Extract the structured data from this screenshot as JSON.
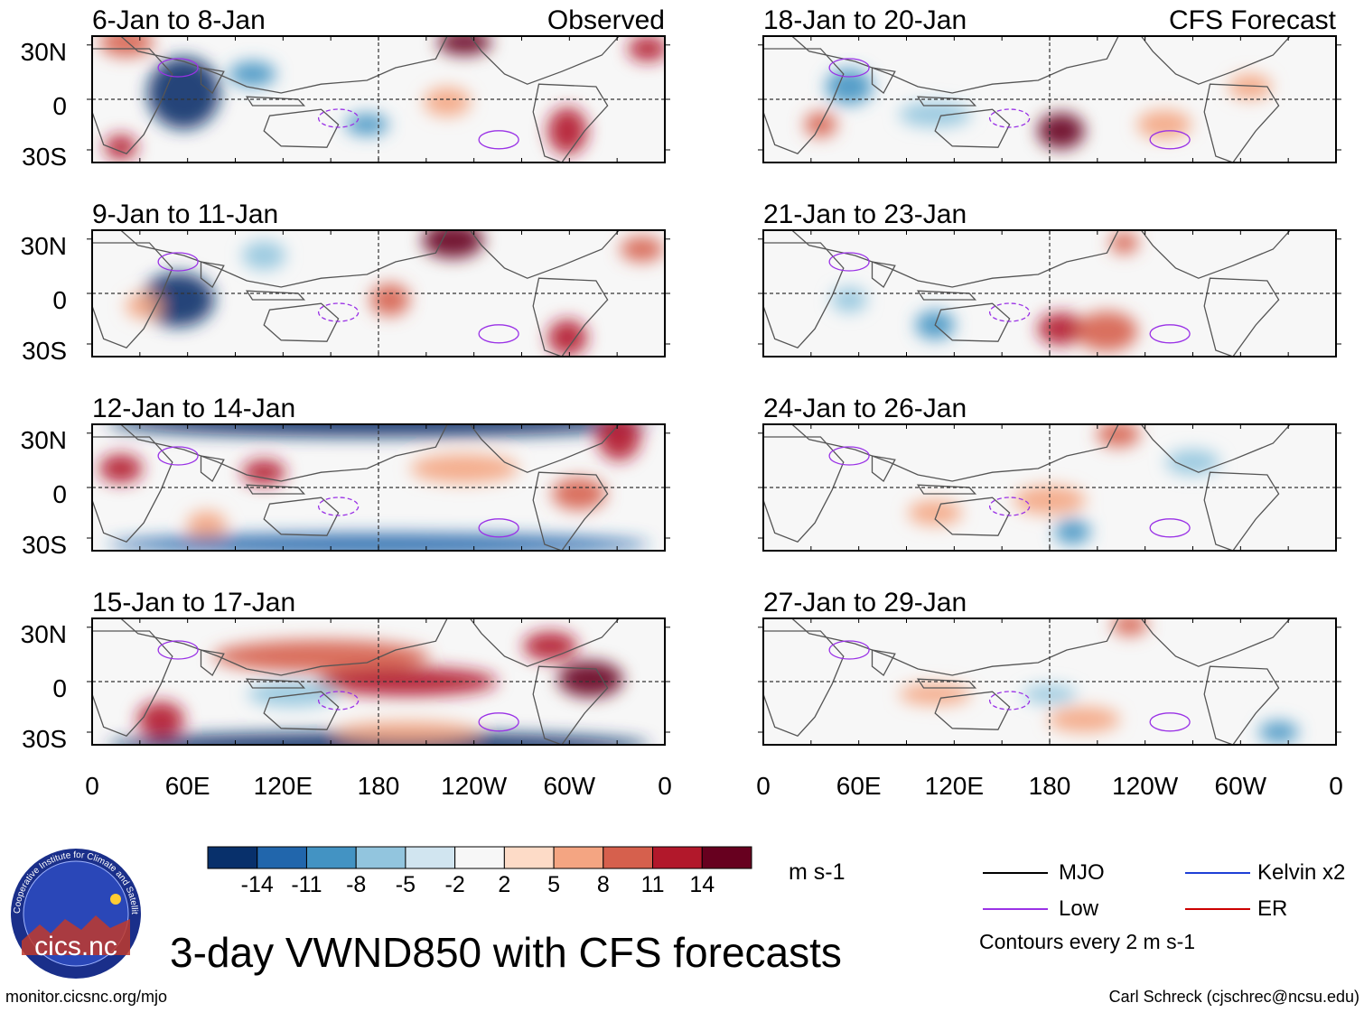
{
  "title": "3-day VWND850 with CFS forecasts",
  "left_column_label": "Observed",
  "right_column_label": "CFS Forecast",
  "panels_left": [
    {
      "dates": "6-Jan to 8-Jan"
    },
    {
      "dates": "9-Jan to 11-Jan"
    },
    {
      "dates": "12-Jan to 14-Jan"
    },
    {
      "dates": "15-Jan to 17-Jan"
    }
  ],
  "panels_right": [
    {
      "dates": "18-Jan to 20-Jan"
    },
    {
      "dates": "21-Jan to 23-Jan"
    },
    {
      "dates": "24-Jan to 26-Jan"
    },
    {
      "dates": "27-Jan to 29-Jan"
    }
  ],
  "lat_labels": [
    "30N",
    "0",
    "30S"
  ],
  "lon_labels": [
    "0",
    "60E",
    "120E",
    "180",
    "120W",
    "60W",
    "0"
  ],
  "colorbar": {
    "colors": [
      "#08306b",
      "#2166ac",
      "#4393c3",
      "#92c5de",
      "#d1e5f0",
      "#f7f7f7",
      "#fddbc7",
      "#f4a582",
      "#d6604d",
      "#b2182b",
      "#67001f"
    ],
    "tick_labels": [
      "-14",
      "-11",
      "-8",
      "-5",
      "-2",
      "2",
      "5",
      "8",
      "11",
      "14"
    ],
    "units": "m s-1"
  },
  "legend": {
    "items": [
      {
        "label": "MJO",
        "color": "#000000"
      },
      {
        "label": "Kelvin x2",
        "color": "#1f3fd6"
      },
      {
        "label": "Low",
        "color": "#9a32e6"
      },
      {
        "label": "ER",
        "color": "#cc0000"
      }
    ],
    "note": "Contours every 2 m s-1"
  },
  "logo_text": "cics.nc",
  "logo_ring_text": "Cooperative Institute for Climate and Satellites",
  "footer": {
    "url": "monitor.cicsnc.org/mjo",
    "credit": "Carl Schreck (cjschrec@ncsu.edu)"
  }
}
